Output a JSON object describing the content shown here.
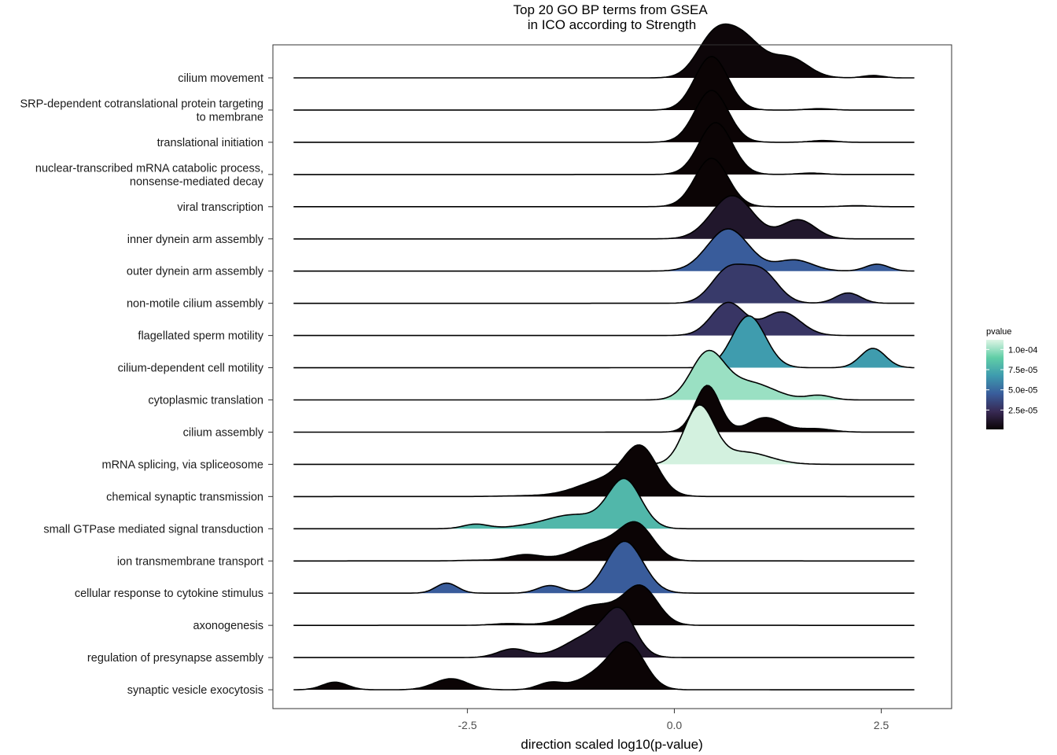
{
  "chart_data": {
    "type": "ridgeline",
    "title": "Top 20 GO BP terms from GSEA\nin ICO according to Strength",
    "title_lines": [
      "Top 20 GO BP terms from GSEA",
      "in ICO according to Strength"
    ],
    "xlabel": "direction scaled log10(p-value)",
    "ylabel": "",
    "xlim": [
      -4.85,
      3.35
    ],
    "x_range": [
      -4.6,
      2.9
    ],
    "xticks": [
      -2.5,
      0.0,
      2.5
    ],
    "xtick_labels": [
      "-2.5",
      "0.0",
      "2.5"
    ],
    "grid": false,
    "legend": {
      "title": "pvalue",
      "placement": "right",
      "ticks": [
        2.5e-05,
        5e-05,
        7.5e-05,
        0.0001
      ],
      "tick_labels": [
        "2.5e-05",
        "5.0e-05",
        "7.5e-05",
        "1.0e-04"
      ],
      "range": [
        1e-06,
        0.000112
      ],
      "colors": [
        "#0b0405",
        "#382a54",
        "#395d9c",
        "#3e9bae",
        "#60cea6",
        "#def5e5"
      ]
    },
    "series": [
      {
        "name": "cilium movement",
        "label_lines": [
          "cilium movement"
        ],
        "pvalue": 2e-06,
        "peaks": [
          [
            0.45,
            0.2,
            0.9
          ],
          [
            0.8,
            0.25,
            1.2
          ],
          [
            1.4,
            0.22,
            0.55
          ],
          [
            2.4,
            0.12,
            0.07
          ]
        ]
      },
      {
        "name": "SRP-dependent cotranslational protein targeting to membrane",
        "label_lines": [
          "SRP-dependent cotranslational protein targeting",
          "to membrane"
        ],
        "pvalue": 1e-06,
        "peaks": [
          [
            0.45,
            0.2,
            1.55
          ],
          [
            1.75,
            0.15,
            0.04
          ]
        ]
      },
      {
        "name": "translational initiation",
        "label_lines": [
          "translational initiation"
        ],
        "pvalue": 1e-06,
        "peaks": [
          [
            0.45,
            0.2,
            1.5
          ],
          [
            1.8,
            0.15,
            0.05
          ]
        ]
      },
      {
        "name": "nuclear-transcribed mRNA catabolic process, nonsense-mediated decay",
        "label_lines": [
          "nuclear-transcribed mRNA catabolic process,",
          "nonsense-mediated decay"
        ],
        "pvalue": 1e-06,
        "peaks": [
          [
            0.5,
            0.2,
            1.5
          ],
          [
            1.65,
            0.15,
            0.04
          ]
        ]
      },
      {
        "name": "viral transcription",
        "label_lines": [
          "viral transcription"
        ],
        "pvalue": 1e-06,
        "peaks": [
          [
            0.45,
            0.2,
            1.4
          ],
          [
            2.2,
            0.15,
            0.03
          ]
        ]
      },
      {
        "name": "inner dynein arm assembly",
        "label_lines": [
          "inner dynein arm assembly"
        ],
        "pvalue": 1.2e-05,
        "peaks": [
          [
            0.7,
            0.25,
            1.25
          ],
          [
            1.5,
            0.2,
            0.55
          ]
        ]
      },
      {
        "name": "outer dynein arm assembly",
        "label_lines": [
          "outer dynein arm assembly"
        ],
        "pvalue": 4.5e-05,
        "peaks": [
          [
            0.65,
            0.25,
            1.22
          ],
          [
            1.45,
            0.22,
            0.32
          ],
          [
            2.45,
            0.14,
            0.2
          ]
        ]
      },
      {
        "name": "non-motile cilium assembly",
        "label_lines": [
          "non-motile cilium assembly"
        ],
        "pvalue": 3e-05,
        "peaks": [
          [
            0.65,
            0.2,
            0.95
          ],
          [
            1.05,
            0.2,
            0.9
          ],
          [
            2.1,
            0.15,
            0.3
          ]
        ]
      },
      {
        "name": "flagellated sperm motility",
        "label_lines": [
          "flagellated sperm motility"
        ],
        "pvalue": 2.8e-05,
        "peaks": [
          [
            0.65,
            0.2,
            0.95
          ],
          [
            1.3,
            0.22,
            0.68
          ]
        ]
      },
      {
        "name": "cilium-dependent cell motility",
        "label_lines": [
          "cilium-dependent cell motility"
        ],
        "pvalue": 6.8e-05,
        "peaks": [
          [
            0.9,
            0.2,
            1.5
          ],
          [
            2.4,
            0.15,
            0.56
          ]
        ]
      },
      {
        "name": "cytoplasmic translation",
        "label_lines": [
          "cytoplasmic translation"
        ],
        "pvalue": 0.0001,
        "peaks": [
          [
            0.4,
            0.2,
            1.3
          ],
          [
            0.9,
            0.3,
            0.5
          ],
          [
            1.75,
            0.15,
            0.13
          ]
        ]
      },
      {
        "name": "cilium assembly",
        "label_lines": [
          "cilium assembly"
        ],
        "pvalue": 1e-06,
        "peaks": [
          [
            0.4,
            0.15,
            1.35
          ],
          [
            1.1,
            0.2,
            0.42
          ],
          [
            1.7,
            0.2,
            0.1
          ]
        ]
      },
      {
        "name": "mRNA splicing, via spliceosome",
        "label_lines": [
          "mRNA splicing, via spliceosome"
        ],
        "pvalue": 0.00011,
        "peaks": [
          [
            0.3,
            0.18,
            1.65
          ],
          [
            0.85,
            0.3,
            0.35
          ]
        ]
      },
      {
        "name": "chemical synaptic transmission",
        "label_lines": [
          "chemical synaptic transmission"
        ],
        "pvalue": 1e-06,
        "peaks": [
          [
            -0.4,
            0.2,
            1.22
          ],
          [
            -0.8,
            0.35,
            0.5
          ],
          [
            -1.8,
            0.3,
            0.02
          ]
        ]
      },
      {
        "name": "small GTPase mediated signal transduction",
        "label_lines": [
          "small GTPase mediated signal transduction"
        ],
        "pvalue": 8e-05,
        "peaks": [
          [
            -0.6,
            0.2,
            1.4
          ],
          [
            -1.2,
            0.3,
            0.38
          ],
          [
            -2.4,
            0.15,
            0.13
          ],
          [
            -1.7,
            0.3,
            0.08
          ]
        ]
      },
      {
        "name": "ion transmembrane transport",
        "label_lines": [
          "ion transmembrane transport"
        ],
        "pvalue": 1e-06,
        "peaks": [
          [
            -0.45,
            0.2,
            0.95
          ],
          [
            -0.9,
            0.3,
            0.52
          ],
          [
            -1.8,
            0.2,
            0.18
          ],
          [
            -2.4,
            0.2,
            0.02
          ]
        ]
      },
      {
        "name": "cellular response to cytokine stimulus",
        "label_lines": [
          "cellular response to cytokine stimulus"
        ],
        "pvalue": 4.5e-05,
        "peaks": [
          [
            -0.6,
            0.22,
            1.5
          ],
          [
            -1.5,
            0.15,
            0.22
          ],
          [
            -2.75,
            0.13,
            0.29
          ]
        ]
      },
      {
        "name": "axonogenesis",
        "label_lines": [
          "axonogenesis"
        ],
        "pvalue": 1e-06,
        "peaks": [
          [
            -0.4,
            0.2,
            1.05
          ],
          [
            -0.95,
            0.3,
            0.58
          ],
          [
            -2.0,
            0.2,
            0.05
          ]
        ]
      },
      {
        "name": "regulation of presynapse assembly",
        "label_lines": [
          "regulation of presynapse assembly"
        ],
        "pvalue": 1.2e-05,
        "peaks": [
          [
            -0.65,
            0.18,
            1.1
          ],
          [
            -1.0,
            0.3,
            0.65
          ],
          [
            -1.95,
            0.18,
            0.25
          ]
        ]
      },
      {
        "name": "synaptic vesicle exocytosis",
        "label_lines": [
          "synaptic vesicle exocytosis"
        ],
        "pvalue": 1e-06,
        "peaks": [
          [
            -0.55,
            0.2,
            1.2
          ],
          [
            -0.9,
            0.25,
            0.45
          ],
          [
            -1.5,
            0.15,
            0.2
          ],
          [
            -2.7,
            0.2,
            0.32
          ],
          [
            -4.1,
            0.15,
            0.22
          ]
        ]
      }
    ]
  }
}
